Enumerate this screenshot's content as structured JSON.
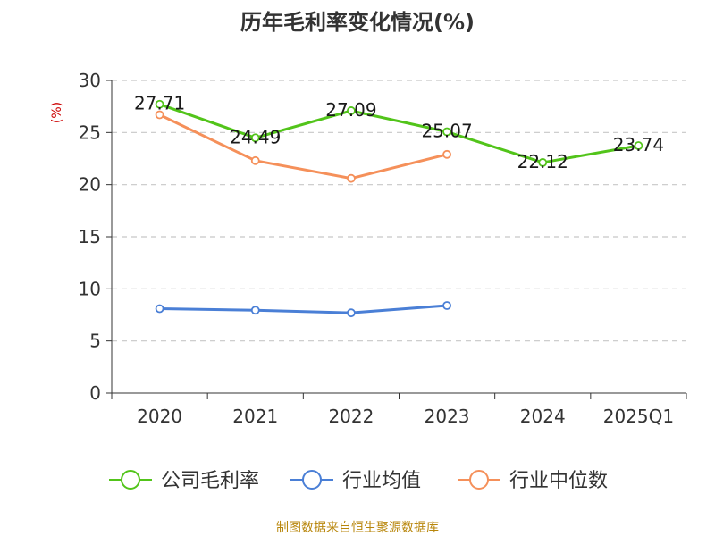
{
  "chart_data": {
    "type": "line",
    "title": "历年毛利率变化情况(%)",
    "ylabel": "(%)",
    "categories": [
      "2020",
      "2021",
      "2022",
      "2023",
      "2024",
      "2025Q1"
    ],
    "yticks": [
      "0",
      "5",
      "10",
      "15",
      "20",
      "25",
      "30"
    ],
    "ylim": [
      0,
      30
    ],
    "grid": true,
    "legend_position": "bottom",
    "series": [
      {
        "name": "公司毛利率",
        "color": "#52c41a",
        "values": [
          27.71,
          24.49,
          27.09,
          25.07,
          22.12,
          23.74
        ],
        "labels": [
          "27.71",
          "24.49",
          "27.09",
          "25.07",
          "22.12",
          "23.74"
        ]
      },
      {
        "name": "行业均值",
        "color": "#4a7fd6",
        "values": [
          8.1,
          7.95,
          7.7,
          8.4,
          null,
          null
        ]
      },
      {
        "name": "行业中位数",
        "color": "#f5905a",
        "values": [
          26.7,
          22.3,
          20.6,
          22.9,
          null,
          null
        ]
      }
    ]
  },
  "source": "制图数据来自恒生聚源数据库"
}
